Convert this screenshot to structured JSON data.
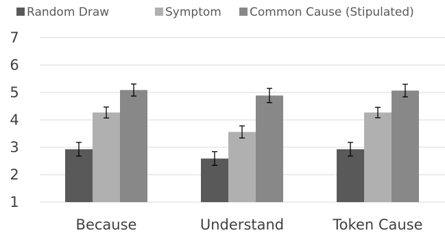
{
  "chart_data": {
    "type": "bar",
    "categories": [
      "Because",
      "Understand",
      "Token Cause"
    ],
    "series": [
      {
        "name": "Random Draw",
        "values": [
          2.93,
          2.59,
          2.93
        ],
        "errors": [
          0.25,
          0.25,
          0.25
        ],
        "color": "#595959"
      },
      {
        "name": "Symptom",
        "values": [
          4.27,
          3.56,
          4.27
        ],
        "errors": [
          0.2,
          0.22,
          0.19
        ],
        "color": "#b0b0b0"
      },
      {
        "name": "Common Cause (Stipulated)",
        "values": [
          5.09,
          4.89,
          5.07
        ],
        "errors": [
          0.22,
          0.26,
          0.23
        ],
        "color": "#888888"
      }
    ],
    "ylim": [
      1,
      7
    ],
    "yticks": [
      1,
      2,
      3,
      4,
      5,
      6,
      7
    ],
    "grid": true,
    "legend_position": "top",
    "title": "",
    "xlabel": "",
    "ylabel": ""
  }
}
